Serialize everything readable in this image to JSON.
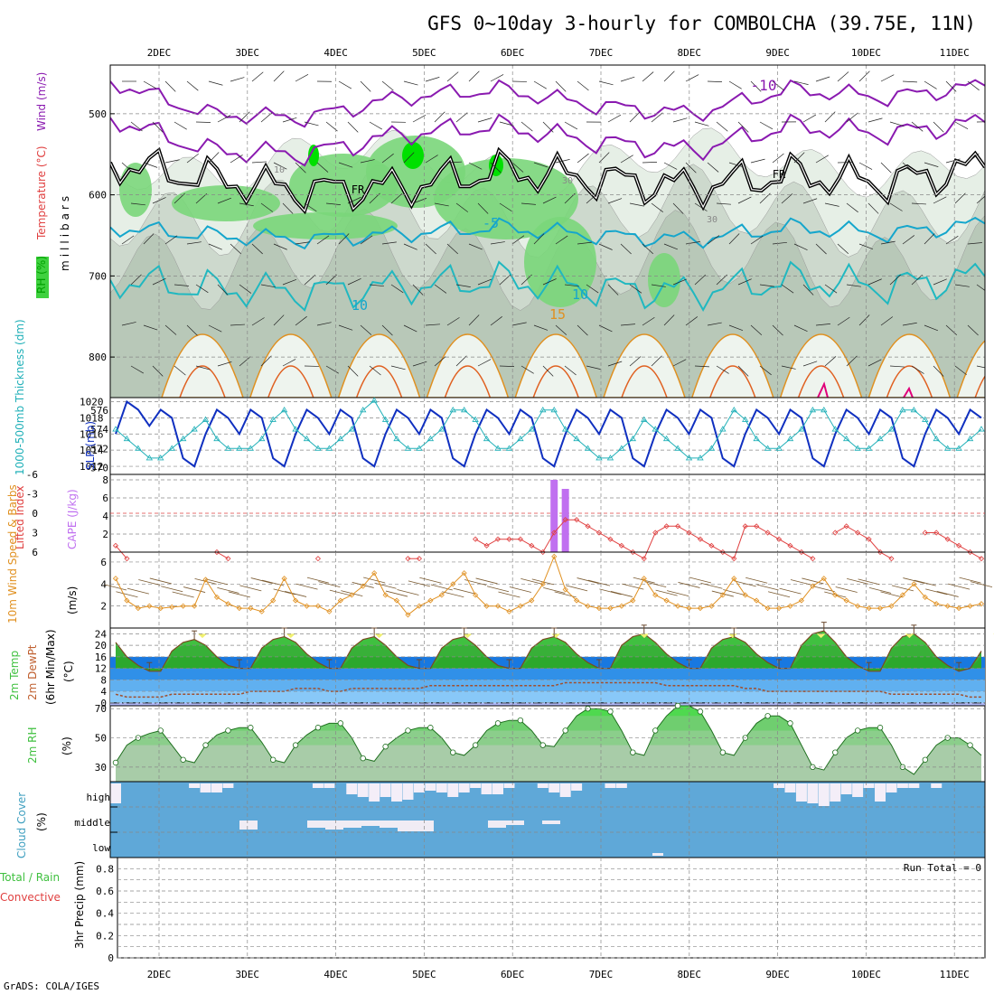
{
  "title": "GFS 0~10day 3-hourly for COMBOLCHA (39.75E, 11N)",
  "footer": "GrADS: COLA/IGES",
  "colors": {
    "rh_green": "#3fd13f",
    "wind_purple": "#8a1ab0",
    "temp_cyan": "#15a6cc",
    "temp_orange": "#e09020",
    "slp_blue": "#1030c0",
    "thick_cyan": "#20b0b8",
    "li_red": "#e04040",
    "cape_purple": "#c070f0",
    "wind10_orange": "#e09020",
    "temp2m_green": "#3fc03f",
    "dewpt_blue": "#2070e0",
    "rh2m_green": "#50c050",
    "cloud_blue": "#5fa8d8"
  },
  "chart_data": [
    {
      "type": "heatmap",
      "name": "upper-air",
      "panel_labels": [
        "RH (%)",
        "Temperature (°C)",
        "Wind (m/s)"
      ],
      "ylabel": "millibars",
      "x_ticks": [
        "2DEC",
        "3DEC",
        "4DEC",
        "5DEC",
        "6DEC",
        "7DEC",
        "8DEC",
        "9DEC",
        "10DEC",
        "11DEC"
      ],
      "y_ticks": [
        500,
        600,
        700,
        800
      ],
      "ylim": [
        440,
        850
      ],
      "contour_labels": [
        "-10",
        "FR",
        "FR",
        "-5",
        "10",
        "10",
        "15",
        "10",
        "30",
        "30"
      ],
      "freezing_level_mb": [
        560,
        580,
        595,
        590,
        570,
        580,
        590,
        575,
        585,
        565
      ],
      "minus5_level_mb": [
        640,
        650,
        655,
        648,
        640,
        650,
        655,
        640,
        648,
        635
      ],
      "minus10_level_mb": [
        460,
        500,
        505,
        480,
        470,
        490,
        500,
        470,
        480,
        465
      ]
    },
    {
      "type": "line",
      "name": "slp-thickness",
      "panel_labels": [
        "SLP (mb)",
        "1000-500mb Thickness (dm)"
      ],
      "y_left_ticks": [
        1012,
        1014,
        1016,
        1018,
        1020
      ],
      "y_right_ticks": [
        570,
        572,
        574,
        576
      ],
      "series": [
        {
          "name": "SLP",
          "values": [
            1016,
            1020,
            1019,
            1017,
            1019,
            1018,
            1013,
            1012,
            1016,
            1019,
            1018,
            1016,
            1019,
            1018,
            1013,
            1012,
            1016,
            1019,
            1018,
            1016,
            1019,
            1018,
            1013,
            1012,
            1016,
            1019,
            1018,
            1016,
            1019,
            1018,
            1013,
            1012,
            1016,
            1019,
            1018,
            1016,
            1019,
            1018,
            1013,
            1012,
            1016,
            1019,
            1018,
            1016,
            1019,
            1018,
            1013,
            1012,
            1016,
            1019,
            1018,
            1016,
            1019,
            1018,
            1013,
            1012,
            1016,
            1019,
            1018,
            1016,
            1019,
            1018,
            1013,
            1012,
            1016,
            1019,
            1018,
            1016,
            1019,
            1018,
            1013,
            1012,
            1016,
            1019,
            1018,
            1016,
            1019,
            1018
          ]
        },
        {
          "name": "Thickness",
          "values": [
            574,
            573,
            572,
            571,
            571,
            572,
            573,
            574,
            575,
            573,
            572,
            572,
            572,
            573,
            575,
            576,
            574,
            573,
            572,
            572,
            573,
            574,
            576,
            577,
            575,
            573,
            572,
            572,
            573,
            574,
            576,
            576,
            575,
            573,
            572,
            572,
            573,
            574,
            576,
            576,
            574,
            573,
            572,
            571,
            571,
            572,
            573,
            575,
            574,
            573,
            572,
            571,
            571,
            572,
            574,
            576,
            575,
            573,
            572,
            572,
            573,
            574,
            576,
            576,
            574,
            573,
            572,
            572,
            573,
            574,
            576,
            576,
            575,
            573,
            572,
            572,
            573,
            574
          ]
        }
      ]
    },
    {
      "type": "line",
      "name": "lifted-index-cape",
      "panel_labels": [
        "Lifted Index",
        "CAPE (J/kg)"
      ],
      "y_left_ticks": [
        "-6",
        "-3",
        "0",
        "3",
        "6"
      ],
      "y_right_ticks": [
        2,
        4,
        6,
        8
      ],
      "cape_bars": [
        {
          "index": 39,
          "value": 8
        },
        {
          "index": 40,
          "value": 7
        }
      ],
      "series": [
        {
          "name": "Lifted Index",
          "values": [
            5,
            7,
            8,
            8,
            8,
            8,
            8,
            8,
            8,
            6,
            7,
            8,
            8,
            8,
            8,
            8,
            8,
            8,
            7,
            8,
            8,
            8,
            8,
            8,
            8,
            8,
            7,
            7,
            8,
            8,
            8,
            8,
            4,
            5,
            4,
            4,
            4,
            5,
            6,
            3,
            1,
            1,
            2,
            3,
            4,
            5,
            6,
            7,
            3,
            2,
            2,
            3,
            4,
            5,
            6,
            7,
            2,
            2,
            3,
            4,
            5,
            6,
            7,
            8,
            3,
            2,
            3,
            4,
            6,
            7,
            8,
            8,
            3,
            3,
            4,
            5,
            6,
            7
          ]
        }
      ]
    },
    {
      "type": "line",
      "name": "wind-10m",
      "panel_labels": [
        "10m Wind Speed & Barbs",
        "(m/s)"
      ],
      "y_ticks": [
        2,
        4,
        6
      ],
      "series": [
        {
          "name": "Wind Speed",
          "values": [
            4.5,
            2.5,
            1.8,
            2,
            1.8,
            1.9,
            2,
            2,
            4.4,
            2.8,
            2.2,
            1.8,
            1.8,
            1.5,
            2.5,
            4.5,
            2.5,
            2,
            2,
            1.5,
            2.5,
            3,
            3.8,
            5,
            3,
            2.5,
            1.2,
            2,
            2.5,
            3,
            4,
            5,
            3,
            2,
            2,
            1.5,
            2,
            2.5,
            4,
            6.5,
            3.5,
            2.5,
            2,
            1.8,
            1.8,
            2,
            2.5,
            4.5,
            3,
            2.5,
            2,
            1.8,
            1.8,
            2,
            3,
            4.5,
            3,
            2.5,
            1.8,
            1.8,
            2,
            2.5,
            3.8,
            4.5,
            3,
            2.5,
            2,
            1.8,
            1.8,
            2,
            3,
            4,
            2.8,
            2.2,
            2,
            1.8,
            2,
            2.2
          ]
        }
      ]
    },
    {
      "type": "area",
      "name": "temp-dewpt-2m",
      "panel_labels": [
        "2m Temp",
        "2m DewPt",
        "(6hr Min/Max)",
        "(°C)"
      ],
      "y_ticks": [
        0,
        4,
        8,
        12,
        16,
        20,
        24
      ],
      "series": [
        {
          "name": "2m Temp",
          "values": [
            21,
            16,
            13,
            11,
            11,
            18,
            21,
            22,
            20,
            16,
            13,
            12,
            12,
            19,
            22,
            23,
            21,
            17,
            14,
            12,
            12,
            19,
            22,
            23,
            20,
            16,
            13,
            12,
            12,
            19,
            22,
            23,
            20,
            16,
            13,
            12,
            12,
            19,
            22,
            23,
            21,
            17,
            14,
            12,
            12,
            20,
            23,
            24,
            21,
            17,
            14,
            12,
            12,
            19,
            22,
            23,
            21,
            17,
            14,
            12,
            12,
            20,
            24,
            25,
            21,
            16,
            13,
            11,
            11,
            19,
            23,
            24,
            21,
            16,
            13,
            11,
            12,
            18
          ]
        },
        {
          "name": "2m DewPt",
          "values": [
            3,
            2,
            2,
            2,
            2,
            3,
            3,
            3,
            3,
            3,
            3,
            3,
            4,
            4,
            4,
            4,
            5,
            5,
            5,
            4,
            4,
            5,
            5,
            5,
            5,
            5,
            5,
            5,
            6,
            6,
            6,
            6,
            6,
            6,
            6,
            6,
            6,
            6,
            6,
            6,
            7,
            7,
            7,
            7,
            7,
            7,
            7,
            7,
            7,
            6,
            6,
            6,
            6,
            6,
            6,
            6,
            5,
            5,
            4,
            4,
            4,
            4,
            4,
            4,
            4,
            4,
            4,
            4,
            4,
            3,
            3,
            3,
            3,
            3,
            3,
            3,
            2,
            2
          ]
        }
      ]
    },
    {
      "type": "area",
      "name": "rh-2m",
      "panel_labels": [
        "2m RH",
        "(%)"
      ],
      "y_ticks": [
        30,
        50,
        70
      ],
      "series": [
        {
          "name": "2m RH",
          "values": [
            33,
            45,
            50,
            53,
            55,
            45,
            35,
            33,
            45,
            52,
            55,
            57,
            57,
            47,
            35,
            33,
            45,
            52,
            57,
            60,
            60,
            50,
            36,
            34,
            44,
            50,
            55,
            57,
            57,
            50,
            40,
            38,
            45,
            55,
            60,
            62,
            62,
            55,
            45,
            44,
            55,
            65,
            70,
            70,
            68,
            55,
            40,
            38,
            55,
            65,
            72,
            72,
            68,
            55,
            40,
            38,
            50,
            60,
            65,
            65,
            60,
            45,
            30,
            28,
            40,
            50,
            55,
            57,
            57,
            45,
            30,
            25,
            35,
            45,
            50,
            50,
            45,
            38
          ]
        }
      ]
    },
    {
      "type": "bar",
      "name": "cloud-cover",
      "panel_labels": [
        "Cloud Cover",
        "(%)"
      ],
      "rows": [
        "high",
        "middle",
        "low"
      ]
    },
    {
      "type": "bar",
      "name": "precip-3hr",
      "panel_labels": [
        "Total / Rain",
        "Convective",
        "3hr Precip (mm)"
      ],
      "annotation": "Run Total = 0",
      "y_ticks": [
        0,
        0.2,
        0.4,
        0.6,
        0.8
      ],
      "values": []
    }
  ]
}
